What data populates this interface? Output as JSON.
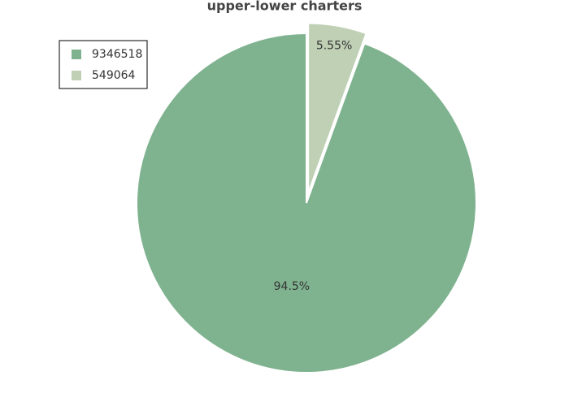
{
  "chart_data": {
    "type": "pie",
    "title": "upper-lower charters",
    "categories": [
      "9346518",
      "549064"
    ],
    "values": [
      94.5,
      5.55
    ],
    "value_labels": [
      "94.5%",
      "5.55%"
    ],
    "colors": [
      "#7fb38f",
      "#bfd0b5"
    ],
    "pull": [
      0,
      0.06
    ],
    "direction": "counterclockwise",
    "legend": "top-left"
  }
}
